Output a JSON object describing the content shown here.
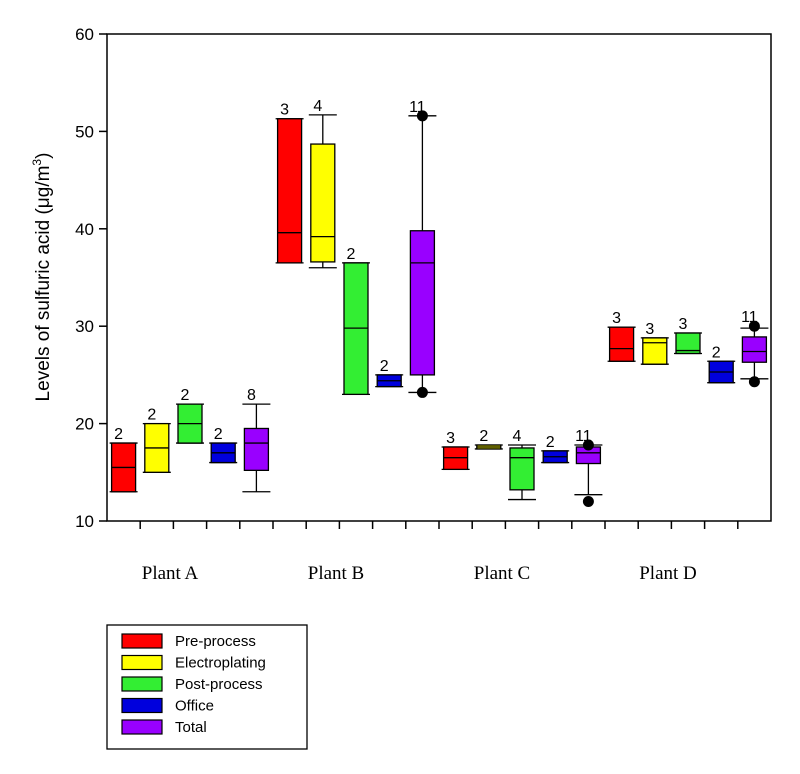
{
  "chart_data": {
    "type": "box",
    "ylabel": "Levels of sulfuric acid (μg/m",
    "ylabel_superscript": "3",
    "ylabel_close": ")",
    "ylim": [
      10,
      60
    ],
    "yticks": [
      10,
      20,
      30,
      40,
      50,
      60
    ],
    "groups": [
      "Plant A",
      "Plant B",
      "Plant C",
      "Plant D"
    ],
    "series": [
      {
        "name": "Pre-process",
        "color": "#ff0000"
      },
      {
        "name": "Electroplating",
        "color": "#ffff00"
      },
      {
        "name": "Post-process",
        "color": "#33ee33"
      },
      {
        "name": "Office",
        "color": "#0000dd"
      },
      {
        "name": "Total",
        "color": "#9900ff"
      }
    ],
    "boxes": [
      {
        "group": 0,
        "series": 0,
        "n": "2",
        "min": 13.0,
        "q1": 13.0,
        "median": 15.5,
        "q3": 18.0,
        "max": 18.0,
        "outliers": []
      },
      {
        "group": 0,
        "series": 1,
        "n": "2",
        "min": 15.0,
        "q1": 15.0,
        "median": 17.5,
        "q3": 20.0,
        "max": 20.0,
        "outliers": []
      },
      {
        "group": 0,
        "series": 2,
        "n": "2",
        "min": 18.0,
        "q1": 18.0,
        "median": 20.0,
        "q3": 22.0,
        "max": 22.0,
        "outliers": []
      },
      {
        "group": 0,
        "series": 3,
        "n": "2",
        "min": 16.0,
        "q1": 16.0,
        "median": 17.0,
        "q3": 18.0,
        "max": 18.0,
        "outliers": []
      },
      {
        "group": 0,
        "series": 4,
        "n": "8",
        "min": 13.0,
        "q1": 15.2,
        "median": 18.0,
        "q3": 19.5,
        "max": 22.0,
        "outliers": []
      },
      {
        "group": 1,
        "series": 0,
        "n": "3",
        "min": 36.5,
        "q1": 36.5,
        "median": 39.6,
        "q3": 51.3,
        "max": 51.3,
        "outliers": []
      },
      {
        "group": 1,
        "series": 1,
        "n": "4",
        "min": 36.0,
        "q1": 36.6,
        "median": 39.2,
        "q3": 48.7,
        "max": 51.7,
        "outliers": []
      },
      {
        "group": 1,
        "series": 2,
        "n": "2",
        "min": 23.0,
        "q1": 23.0,
        "median": 29.8,
        "q3": 36.5,
        "max": 36.5,
        "outliers": []
      },
      {
        "group": 1,
        "series": 3,
        "n": "2",
        "min": 23.8,
        "q1": 23.8,
        "median": 24.4,
        "q3": 25.0,
        "max": 25.0,
        "outliers": []
      },
      {
        "group": 1,
        "series": 4,
        "n": "11",
        "min": 23.2,
        "q1": 25.0,
        "median": 36.5,
        "q3": 39.8,
        "max": 51.6,
        "outliers": [
          23.2,
          51.6
        ]
      },
      {
        "group": 2,
        "series": 0,
        "n": "3",
        "min": 15.3,
        "q1": 15.3,
        "median": 16.5,
        "q3": 17.6,
        "max": 17.6,
        "outliers": []
      },
      {
        "group": 2,
        "series": 1,
        "n": "2",
        "min": 17.4,
        "q1": 17.4,
        "median": 17.6,
        "q3": 17.8,
        "max": 17.8,
        "outliers": []
      },
      {
        "group": 2,
        "series": 2,
        "n": "4",
        "min": 12.2,
        "q1": 13.2,
        "median": 16.5,
        "q3": 17.5,
        "max": 17.8,
        "outliers": []
      },
      {
        "group": 2,
        "series": 3,
        "n": "2",
        "min": 16.0,
        "q1": 16.0,
        "median": 16.6,
        "q3": 17.2,
        "max": 17.2,
        "outliers": []
      },
      {
        "group": 2,
        "series": 4,
        "n": "11",
        "min": 12.7,
        "q1": 15.9,
        "median": 17.0,
        "q3": 17.6,
        "max": 17.8,
        "outliers": [
          12.0,
          17.8
        ]
      },
      {
        "group": 3,
        "series": 0,
        "n": "3",
        "min": 26.4,
        "q1": 26.4,
        "median": 27.7,
        "q3": 29.9,
        "max": 29.9,
        "outliers": []
      },
      {
        "group": 3,
        "series": 1,
        "n": "3",
        "min": 26.1,
        "q1": 26.1,
        "median": 28.3,
        "q3": 28.8,
        "max": 28.8,
        "outliers": []
      },
      {
        "group": 3,
        "series": 2,
        "n": "3",
        "min": 27.2,
        "q1": 27.2,
        "median": 27.5,
        "q3": 29.3,
        "max": 29.3,
        "outliers": []
      },
      {
        "group": 3,
        "series": 3,
        "n": "2",
        "min": 24.2,
        "q1": 24.2,
        "median": 25.3,
        "q3": 26.4,
        "max": 26.4,
        "outliers": []
      },
      {
        "group": 3,
        "series": 4,
        "n": "11",
        "min": 24.6,
        "q1": 26.3,
        "median": 27.4,
        "q3": 28.9,
        "max": 29.8,
        "outliers": [
          24.3,
          30.0
        ]
      }
    ]
  }
}
